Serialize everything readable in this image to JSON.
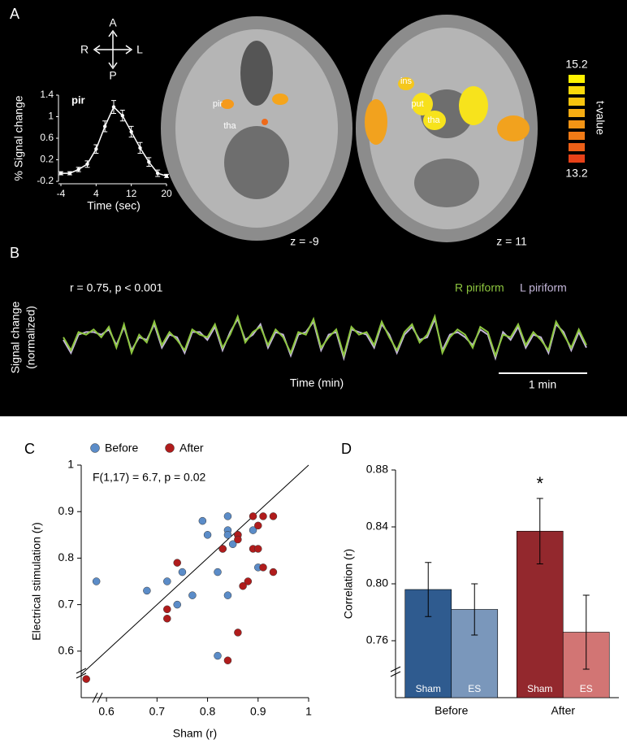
{
  "panels": [
    "A",
    "B",
    "C",
    "D"
  ],
  "orientation": {
    "up": "A",
    "down": "P",
    "left": "R",
    "right": "L"
  },
  "brain_labels": {
    "left": [
      "pir",
      "tha"
    ],
    "right": [
      "ins",
      "put",
      "tha"
    ]
  },
  "slices": [
    "z = -9",
    "z = 11"
  ],
  "colorbar": {
    "label": "t-value",
    "max": 15.2,
    "min": 13.2
  },
  "chart_data": [
    {
      "type": "line",
      "title": "pir",
      "xlabel": "Time (sec)",
      "ylabel": "% Signal change",
      "x": [
        -4,
        -2,
        0,
        2,
        4,
        6,
        8,
        10,
        12,
        14,
        16,
        18,
        20
      ],
      "values": [
        -0.05,
        -0.05,
        0.02,
        0.12,
        0.4,
        0.82,
        1.18,
        1.02,
        0.72,
        0.42,
        0.16,
        -0.05,
        -0.1
      ],
      "errors": [
        0.03,
        0.03,
        0.04,
        0.06,
        0.08,
        0.1,
        0.12,
        0.1,
        0.1,
        0.1,
        0.08,
        0.06,
        0.03
      ],
      "color": "#ffffff",
      "xlim": [
        -4,
        20
      ],
      "xticks": [
        -4,
        4,
        12,
        20
      ],
      "ylim": [
        -0.2,
        1.4
      ],
      "yticks": [
        -0.2,
        0.2,
        0.6,
        1,
        1.4
      ]
    },
    {
      "type": "timeseries",
      "ylabel": [
        "Signal change",
        "(normalized)"
      ],
      "xlabel": "Time (min)",
      "annotation": "r = 0.75, p < 0.001",
      "scalebar": "1 min",
      "series": [
        {
          "name": "R piriform",
          "color": "#8dc63f",
          "values": [
            0.1,
            -0.4,
            0.3,
            0.2,
            0.4,
            0.1,
            0.5,
            -0.3,
            0.6,
            -0.5,
            0.2,
            -0.1,
            0.7,
            -0.2,
            0.3,
            0.0,
            -0.4,
            0.4,
            0.2,
            0.1,
            0.6,
            -0.3,
            0.2,
            0.9,
            -0.1,
            0.3,
            0.5,
            -0.2,
            0.4,
            0.1,
            -0.5,
            0.3,
            0.2,
            0.8,
            -0.3,
            0.1,
            0.4,
            -0.6,
            0.5,
            0.2,
            0.3,
            -0.2,
            0.7,
            0.1,
            -0.4,
            0.3,
            0.6,
            -0.1,
            0.2,
            0.9,
            -0.5,
            0.1,
            0.4,
            0.2,
            -0.3,
            0.5,
            0.3,
            -0.6,
            0.2,
            0.1,
            0.6,
            -0.2,
            0.3,
            0.0,
            -0.4,
            0.7,
            0.2,
            -0.3,
            0.4,
            -0.2
          ]
        },
        {
          "name": "L piriform",
          "color": "#c3b6d9",
          "values": [
            0.0,
            -0.5,
            0.2,
            0.3,
            0.3,
            0.2,
            0.4,
            -0.2,
            0.5,
            -0.4,
            0.1,
            0.0,
            0.6,
            -0.3,
            0.2,
            0.1,
            -0.5,
            0.3,
            0.3,
            0.0,
            0.5,
            -0.4,
            0.3,
            0.8,
            0.0,
            0.2,
            0.6,
            -0.3,
            0.3,
            0.2,
            -0.6,
            0.2,
            0.3,
            0.7,
            -0.4,
            0.2,
            0.3,
            -0.7,
            0.4,
            0.3,
            0.2,
            -0.3,
            0.6,
            0.2,
            -0.5,
            0.2,
            0.5,
            0.0,
            0.1,
            0.8,
            -0.4,
            0.2,
            0.3,
            0.1,
            -0.2,
            0.4,
            0.2,
            -0.7,
            0.3,
            0.0,
            0.5,
            -0.3,
            0.2,
            0.1,
            -0.5,
            0.6,
            0.3,
            -0.4,
            0.3,
            -0.3
          ]
        }
      ]
    },
    {
      "type": "scatter",
      "xlabel": "Sham (r)",
      "ylabel": "Electrical stimulation (r)",
      "annotation": "F(1,17) = 6.7, p = 0.02",
      "xlim": [
        0.55,
        1
      ],
      "xticks": [
        0.6,
        0.7,
        0.8,
        0.9,
        1
      ],
      "ylim": [
        0.5,
        1
      ],
      "yticks": [
        0.6,
        0.7,
        0.8,
        0.9,
        1
      ],
      "series": [
        {
          "name": "Before",
          "color": "#5b8cc8",
          "x": [
            0.58,
            0.68,
            0.72,
            0.74,
            0.75,
            0.77,
            0.79,
            0.8,
            0.82,
            0.83,
            0.84,
            0.84,
            0.84,
            0.85,
            0.86,
            0.89,
            0.9,
            0.84,
            0.82
          ],
          "y": [
            0.75,
            0.73,
            0.75,
            0.7,
            0.77,
            0.72,
            0.88,
            0.85,
            0.77,
            0.82,
            0.89,
            0.86,
            0.85,
            0.83,
            0.85,
            0.86,
            0.78,
            0.72,
            0.59
          ]
        },
        {
          "name": "After",
          "color": "#b01c1c",
          "x": [
            0.56,
            0.72,
            0.72,
            0.74,
            0.83,
            0.86,
            0.86,
            0.89,
            0.91,
            0.93,
            0.9,
            0.89,
            0.9,
            0.88,
            0.87,
            0.86,
            0.84,
            0.93,
            0.91
          ],
          "y": [
            0.54,
            0.69,
            0.67,
            0.79,
            0.82,
            0.85,
            0.84,
            0.89,
            0.89,
            0.89,
            0.87,
            0.82,
            0.82,
            0.75,
            0.74,
            0.64,
            0.58,
            0.77,
            0.78
          ]
        }
      ]
    },
    {
      "type": "bar",
      "ylabel": "Correlation (r)",
      "categories": [
        "Before",
        "After"
      ],
      "ylim": [
        0.72,
        0.88
      ],
      "yticks": [
        0.76,
        {
          "value": 0.8,
          "label": "0.80"
        },
        0.84,
        0.88
      ],
      "series": [
        {
          "name": "Sham",
          "colors": [
            "#2f5b8f",
            "#93282d"
          ],
          "values": [
            0.796,
            0.837
          ],
          "errors": [
            0.019,
            0.023
          ]
        },
        {
          "name": "ES",
          "colors": [
            "#7a97bb",
            "#d27574"
          ],
          "values": [
            0.782,
            0.766
          ],
          "errors": [
            0.018,
            0.026
          ]
        }
      ],
      "annotation": "*"
    }
  ]
}
